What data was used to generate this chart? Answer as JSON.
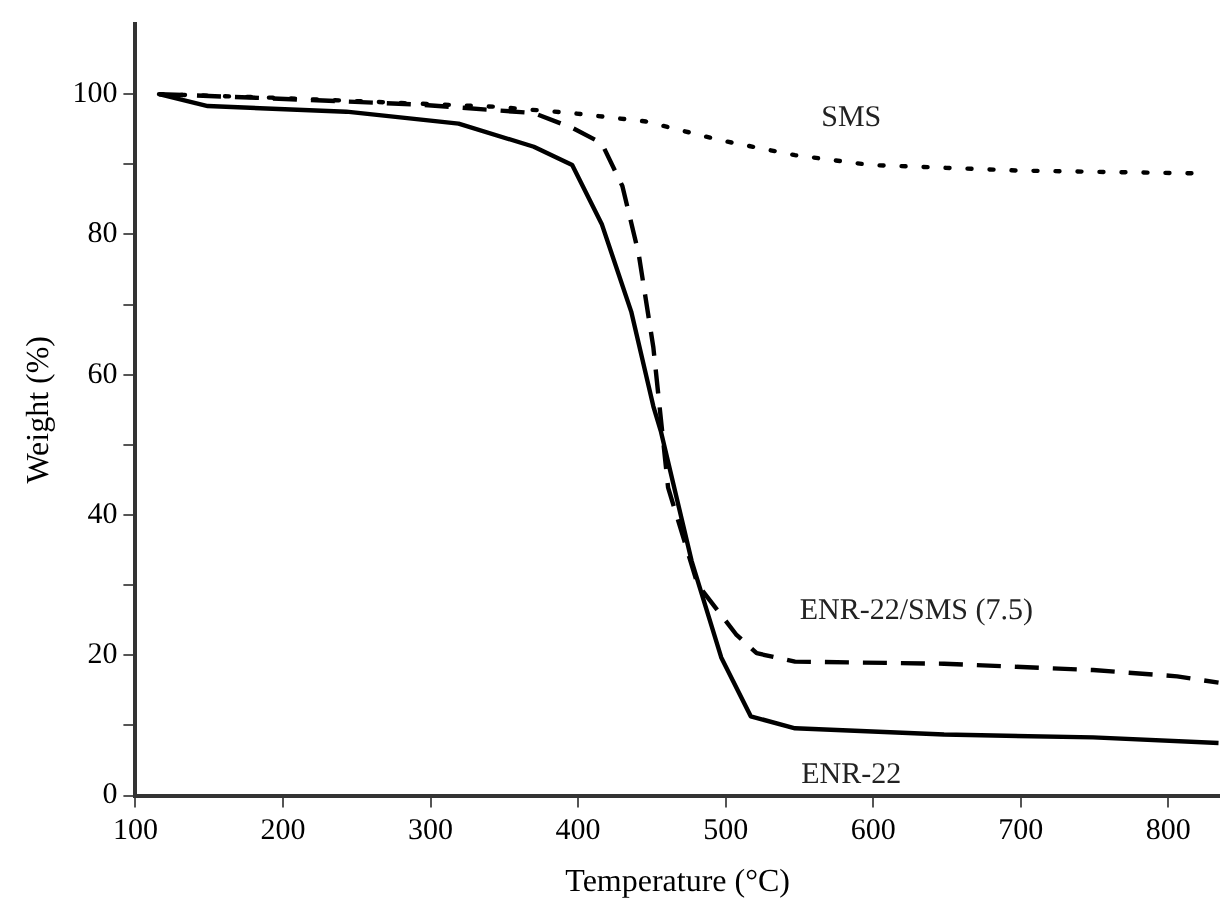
{
  "chart_data": {
    "type": "line",
    "xlabel": "Temperature (°C)",
    "ylabel": "Weight (%)",
    "xlim": [
      100,
      835
    ],
    "xticks": [
      100,
      200,
      300,
      400,
      500,
      600,
      700,
      800
    ],
    "ylim": [
      0,
      110
    ],
    "yticks": [
      0,
      {
        "value": 10,
        "label": null
      },
      20,
      {
        "value": 30,
        "label": null
      },
      40,
      {
        "value": 50,
        "label": null
      },
      60,
      {
        "value": 70,
        "label": null
      },
      80,
      {
        "value": 90,
        "label": null
      },
      100
    ],
    "grid": false,
    "legend": false,
    "marker": "none",
    "series": [
      {
        "name": "ENR-22",
        "color": "#000000",
        "line_style": "solid",
        "x": [
          116,
          149,
          243,
          319,
          370,
          396,
          416,
          436,
          451,
          456,
          477,
          497,
          517,
          547,
          648,
          749,
          834
        ],
        "values": [
          100,
          98.3,
          97.5,
          95.8,
          92.5,
          89.9,
          81.5,
          69,
          55.5,
          52,
          33.4,
          19.7,
          11.3,
          9.6,
          8.7,
          8.3,
          7.5
        ]
      },
      {
        "name": "ENR-22/SMS (7.5)",
        "color": "#000000",
        "line_style": "dashed",
        "x": [
          116,
          192,
          293,
          370,
          396,
          416,
          430,
          441,
          451,
          461,
          481,
          507,
          521,
          547,
          648,
          749,
          806,
          834
        ],
        "values": [
          100,
          99.4,
          98.5,
          97.3,
          95.2,
          93,
          86.9,
          77.3,
          63.9,
          43.9,
          30.1,
          23,
          20.3,
          19.1,
          18.8,
          17.9,
          17,
          16.1
        ]
      },
      {
        "name": "SMS",
        "color": "#000000",
        "line_style": "dotted",
        "x": [
          116,
          192,
          344,
          396,
          446,
          497,
          547,
          598,
          699,
          820
        ],
        "values": [
          100,
          99.5,
          98.2,
          97.3,
          96.1,
          93.4,
          91.3,
          89.9,
          89.1,
          88.7
        ]
      }
    ]
  }
}
